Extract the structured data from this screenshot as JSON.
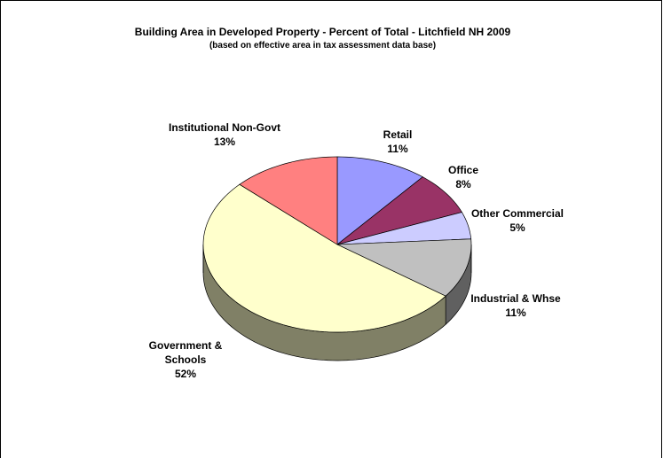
{
  "chart_data": {
    "type": "pie",
    "title": "Building Area in Developed Property - Percent of Total - Litchfield NH 2009",
    "subtitle": "(based on effective area in tax assessment data base)",
    "categories": [
      "Retail",
      "Office",
      "Other Commercial",
      "Industrial & Whse",
      "Government & Schools",
      "Institutional Non-Govt"
    ],
    "values": [
      11,
      8,
      5,
      11,
      52,
      13
    ],
    "value_labels": [
      "11%",
      "8%",
      "5%",
      "11%",
      "52%",
      "13%"
    ],
    "colors": [
      "#9999ff",
      "#993366",
      "#ccccff",
      "#c0c0c0",
      "#ffffcc",
      "#ff8080"
    ]
  }
}
